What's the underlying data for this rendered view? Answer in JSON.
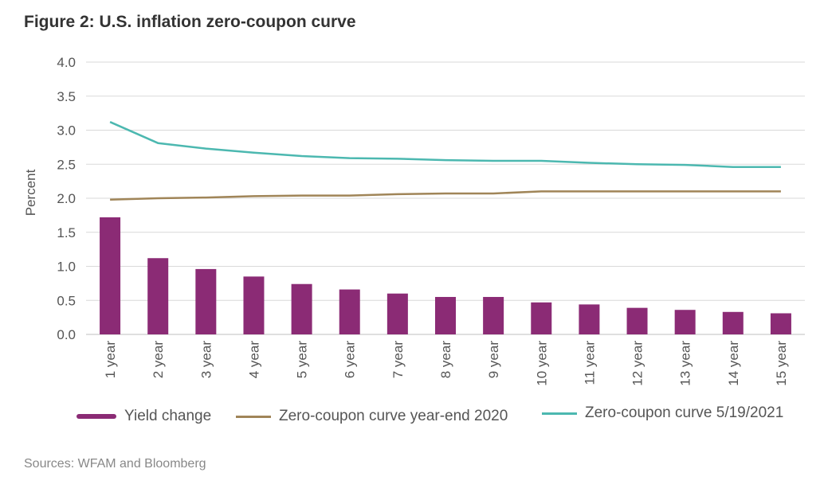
{
  "title": "Figure 2: U.S. inflation zero-coupon curve",
  "source": "Sources: WFAM and Bloomberg",
  "colors": {
    "bar": "#8B2B75",
    "line_2020": "#A08558",
    "line_2021": "#4CB8B0",
    "grid": "#d9d9d9"
  },
  "chart_data": {
    "type": "bar",
    "ylabel": "Percent",
    "ylim": [
      0,
      4.0
    ],
    "yticks": [
      "0.0",
      "0.5",
      "1.0",
      "1.5",
      "2.0",
      "2.5",
      "3.0",
      "3.5",
      "4.0"
    ],
    "grid": true,
    "legend_position": "bottom",
    "categories": [
      "1 year",
      "2 year",
      "3 year",
      "4 year",
      "5 year",
      "6 year",
      "7 year",
      "8 year",
      "9 year",
      "10 year",
      "11 year",
      "12 year",
      "13 year",
      "14 year",
      "15 year"
    ],
    "series": [
      {
        "name": "Yield change",
        "type": "bar",
        "values": [
          1.72,
          1.12,
          0.96,
          0.85,
          0.74,
          0.66,
          0.6,
          0.55,
          0.55,
          0.47,
          0.44,
          0.39,
          0.36,
          0.33,
          0.31
        ]
      },
      {
        "name": "Zero-coupon curve year-end 2020",
        "type": "line",
        "values": [
          1.98,
          2.0,
          2.01,
          2.03,
          2.04,
          2.04,
          2.06,
          2.07,
          2.07,
          2.1,
          2.1,
          2.1,
          2.1,
          2.1,
          2.1
        ]
      },
      {
        "name": "Zero-coupon curve 5/19/2021",
        "type": "line",
        "values": [
          3.12,
          2.81,
          2.73,
          2.67,
          2.62,
          2.59,
          2.58,
          2.56,
          2.55,
          2.55,
          2.52,
          2.5,
          2.49,
          2.46,
          2.46
        ]
      }
    ]
  }
}
